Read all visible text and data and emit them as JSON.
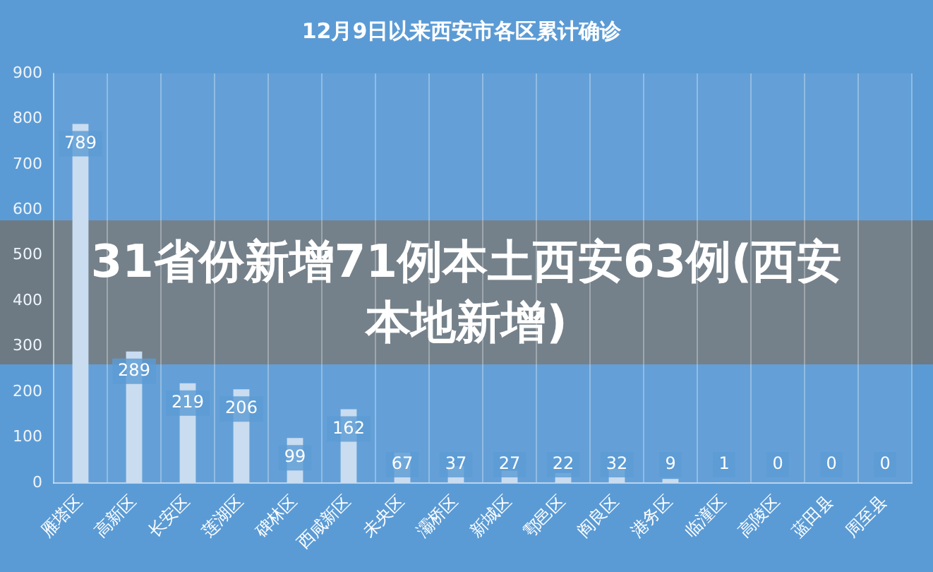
{
  "chart_data": {
    "type": "bar",
    "title": "12月9日以来西安市各区累计确诊",
    "categories": [
      "雁塔区",
      "高新区",
      "长安区",
      "莲湖区",
      "碑林区",
      "西咸新区",
      "未央区",
      "灞桥区",
      "新城区",
      "鄠邑区",
      "阎良区",
      "港务区",
      "临潼区",
      "高陵区",
      "蓝田县",
      "周至县"
    ],
    "values": [
      789,
      289,
      219,
      206,
      99,
      162,
      67,
      37,
      27,
      22,
      32,
      9,
      1,
      0,
      0,
      0
    ],
    "color": "#c9dcf0",
    "ylim": [
      0,
      900
    ],
    "yticks": [
      0,
      100,
      200,
      300,
      400,
      500,
      600,
      700,
      800,
      900
    ],
    "grid": "x",
    "data_labels": true,
    "annotations": [
      "31省份新增71例本土西安63例(西安本地新增)"
    ]
  }
}
